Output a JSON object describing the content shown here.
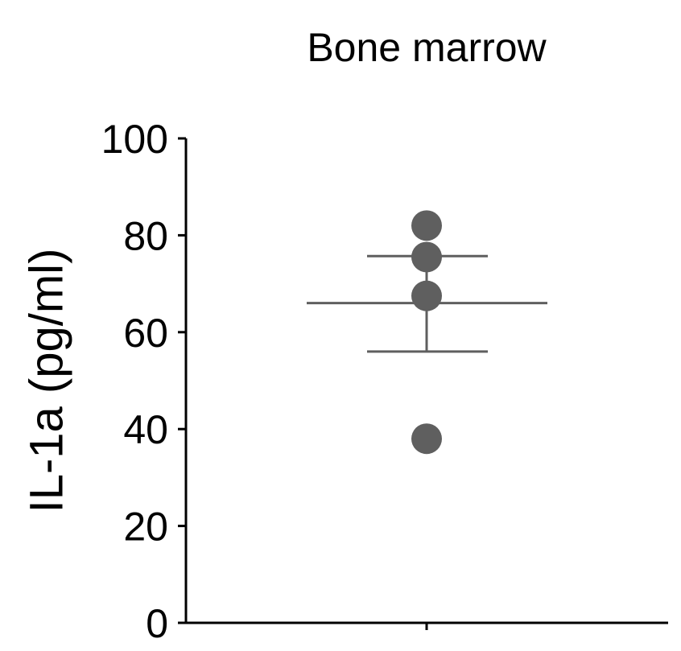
{
  "chart_data": {
    "type": "scatter",
    "title": "Bone marrow",
    "xlabel": "",
    "ylabel": "IL-1a (pg/ml)",
    "ylim": [
      0,
      100
    ],
    "yticks": [
      "0",
      "20",
      "40",
      "60",
      "80",
      "100"
    ],
    "points": [
      82,
      75.5,
      67.5,
      38
    ],
    "mean": 66,
    "error_bar": [
      56,
      75.7
    ],
    "grid": false,
    "point_color": "#5f5f5f",
    "line_color": "#5f5f5f"
  }
}
